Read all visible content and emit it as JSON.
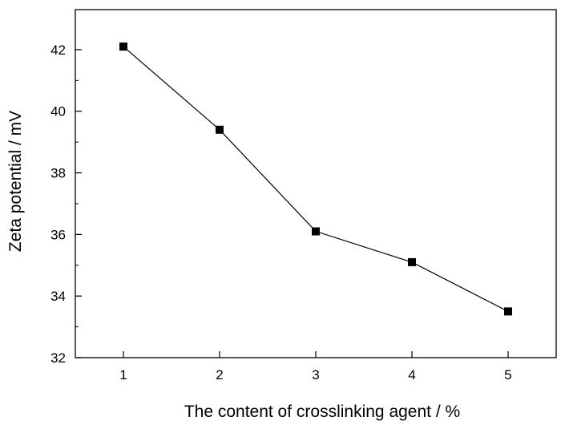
{
  "chart_data": {
    "type": "line",
    "title": "",
    "xlabel": "The content of crosslinking agent  / %",
    "ylabel": "Zeta potential / mV",
    "x": [
      1,
      2,
      3,
      4,
      5
    ],
    "xlim": [
      0.5,
      5.5
    ],
    "ylim": [
      32,
      43.3
    ],
    "xticks": [
      1,
      2,
      3,
      4,
      5
    ],
    "yticks": [
      32,
      34,
      36,
      38,
      40,
      42
    ],
    "grid": false,
    "series": [
      {
        "values": [
          42.1,
          39.4,
          36.1,
          35.1,
          33.5
        ],
        "marker": "square",
        "color": "#000000"
      }
    ]
  }
}
